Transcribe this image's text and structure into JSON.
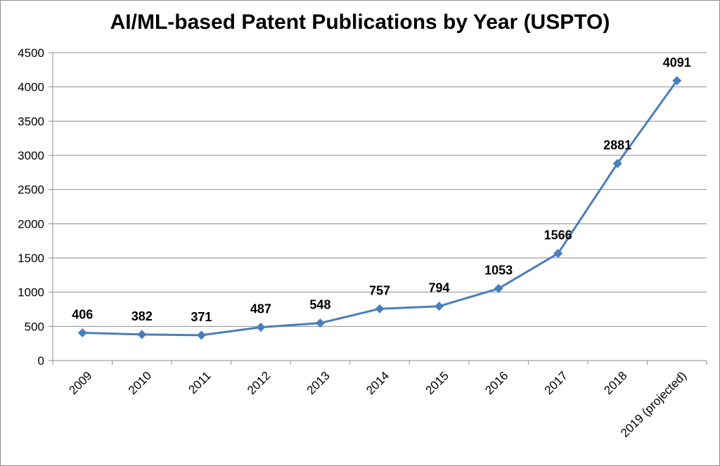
{
  "chart_data": {
    "type": "line",
    "title": "AI/ML-based Patent Publications by Year (USPTO)",
    "xlabel": "",
    "ylabel": "",
    "categories": [
      "2009",
      "2010",
      "2011",
      "2012",
      "2013",
      "2014",
      "2015",
      "2016",
      "2017",
      "2018",
      "2019 (projected)"
    ],
    "series": [
      {
        "values": [
          406,
          382,
          371,
          487,
          548,
          757,
          794,
          1053,
          1566,
          2881,
          4091
        ],
        "color": "#4a7ebb",
        "marker": "diamond"
      }
    ],
    "data_labels": [
      "406",
      "382",
      "371",
      "487",
      "548",
      "757",
      "794",
      "1053",
      "1566",
      "2881",
      "4091"
    ],
    "ylim": [
      0,
      4500
    ],
    "yticks": [
      "0",
      "500",
      "1000",
      "1500",
      "2000",
      "2500",
      "3000",
      "3500",
      "4000",
      "4500"
    ],
    "grid": true,
    "legend": "none"
  }
}
